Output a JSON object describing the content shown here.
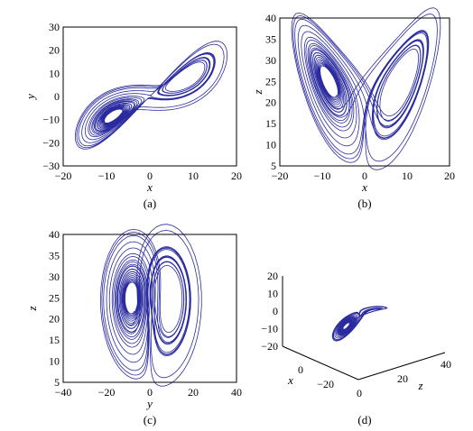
{
  "style": {
    "trace_color": "#2b2ba0",
    "axis_color": "#000000"
  },
  "chart_data": [
    {
      "type": "line",
      "caption": "(a)",
      "projection": "xy",
      "xlabel": "x",
      "ylabel": "y",
      "xlim": [
        -20,
        20
      ],
      "ylim": [
        -30,
        30
      ],
      "xticks": [
        "−20",
        "−10",
        "0",
        "10",
        "20"
      ],
      "yticks": [
        "30",
        "20",
        "10",
        "0",
        "−10",
        "−20",
        "−30"
      ],
      "grid": false
    },
    {
      "type": "line",
      "caption": "(b)",
      "projection": "xz",
      "xlabel": "x",
      "ylabel": "z",
      "xlim": [
        -20,
        20
      ],
      "ylim": [
        5,
        40
      ],
      "xticks": [
        "−20",
        "−10",
        "0",
        "10",
        "20"
      ],
      "yticks": [
        "40",
        "35",
        "30",
        "25",
        "20",
        "15",
        "10",
        "5"
      ],
      "grid": false
    },
    {
      "type": "line",
      "caption": "(c)",
      "projection": "yz",
      "xlabel": "y",
      "ylabel": "z",
      "xlim": [
        -40,
        40
      ],
      "ylim": [
        5,
        40
      ],
      "xticks": [
        "−40",
        "−20",
        "0",
        "20",
        "40"
      ],
      "yticks": [
        "40",
        "35",
        "30",
        "25",
        "20",
        "15",
        "10",
        "5"
      ],
      "grid": false
    },
    {
      "type": "line",
      "caption": "(d)",
      "projection": "xyz-3d",
      "xlabel": "x",
      "zlabel": "z",
      "vertical_ticks": [
        "20",
        "10",
        "0",
        "−10",
        "−20"
      ],
      "x_ticks": [
        "0",
        "−20"
      ],
      "z_ticks": [
        "0",
        "20",
        "40"
      ],
      "grid": false
    }
  ]
}
